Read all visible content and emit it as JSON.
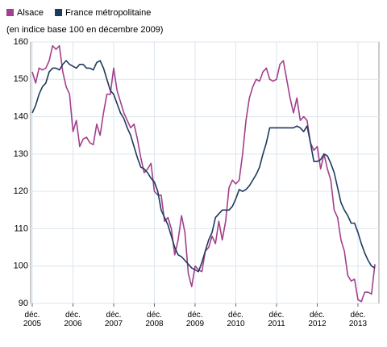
{
  "chart_data": {
    "type": "line",
    "subtitle": "(en indice base 100 en décembre 2009)",
    "categories": [
      "déc. 2005",
      null,
      null,
      null,
      null,
      null,
      null,
      null,
      null,
      null,
      null,
      null,
      "déc. 2006",
      null,
      null,
      null,
      null,
      null,
      null,
      null,
      null,
      null,
      null,
      null,
      "déc. 2007",
      null,
      null,
      null,
      null,
      null,
      null,
      null,
      null,
      null,
      null,
      null,
      "déc. 2008",
      null,
      null,
      null,
      null,
      null,
      null,
      null,
      null,
      null,
      null,
      null,
      "déc. 2009",
      null,
      null,
      null,
      null,
      null,
      null,
      null,
      null,
      null,
      null,
      null,
      "déc. 2010",
      null,
      null,
      null,
      null,
      null,
      null,
      null,
      null,
      null,
      null,
      null,
      "déc. 2011",
      null,
      null,
      null,
      null,
      null,
      null,
      null,
      null,
      null,
      null,
      null,
      "déc. 2012",
      null,
      null,
      null,
      null,
      null,
      null,
      null,
      null,
      null,
      null,
      null,
      "déc. 2013",
      null,
      null,
      null,
      null,
      null
    ],
    "series": [
      {
        "name": "Alsace",
        "color": "#a33f8c",
        "values": [
          152,
          149,
          153,
          152.5,
          153,
          155,
          159,
          158,
          159,
          152,
          148,
          146,
          136,
          139,
          132,
          134,
          134.5,
          133,
          132.5,
          138,
          135,
          141,
          146,
          146,
          153,
          147,
          144,
          141,
          139,
          137,
          138,
          134,
          129,
          125,
          126,
          127.5,
          120,
          119,
          119,
          112,
          113,
          110,
          103,
          107,
          113.5,
          109,
          98,
          94.5,
          100,
          99,
          98.5,
          104,
          105,
          108,
          106,
          112,
          107,
          112,
          121,
          123,
          122,
          123,
          130,
          139,
          145,
          148,
          150,
          149.5,
          152,
          153,
          150,
          149.5,
          150,
          154,
          155,
          150,
          145,
          141,
          145,
          139,
          140,
          139,
          133,
          131,
          132,
          126,
          130,
          126,
          123,
          115,
          113,
          107,
          104,
          97.5,
          96,
          96.5,
          91,
          90.5,
          93,
          93,
          92.5,
          100.5
        ]
      },
      {
        "name": "France métropolitaine",
        "color": "#1d3a5c",
        "values": [
          141,
          143,
          146,
          148,
          149,
          152,
          153,
          153,
          152.5,
          154,
          155,
          154,
          153.5,
          153,
          154,
          154,
          153,
          153,
          152.5,
          154.5,
          155,
          153,
          150,
          147,
          146,
          143.5,
          141,
          139.5,
          137,
          135,
          132,
          129,
          126.5,
          126,
          125,
          123.5,
          122.5,
          120,
          115,
          113,
          111,
          108,
          105,
          103,
          102.5,
          101.5,
          100.5,
          99.5,
          99,
          98.5,
          101,
          104,
          107,
          109,
          113,
          114,
          115,
          115,
          115,
          116,
          118,
          120.5,
          120,
          120.5,
          121.5,
          123,
          124.5,
          126.5,
          130,
          133,
          137,
          137,
          137,
          137,
          137,
          137,
          137,
          137,
          137.5,
          137,
          136,
          137.5,
          133,
          128,
          128,
          128.5,
          130,
          129.5,
          127.5,
          125,
          121,
          117,
          115,
          113.5,
          111.5,
          111.5,
          109,
          106,
          103.5,
          101.5,
          100,
          99.5
        ]
      }
    ],
    "ylim": [
      90,
      160
    ],
    "yticks": [
      90,
      100,
      110,
      120,
      130,
      140,
      150,
      160
    ],
    "grid": true,
    "legend": "top-left"
  }
}
